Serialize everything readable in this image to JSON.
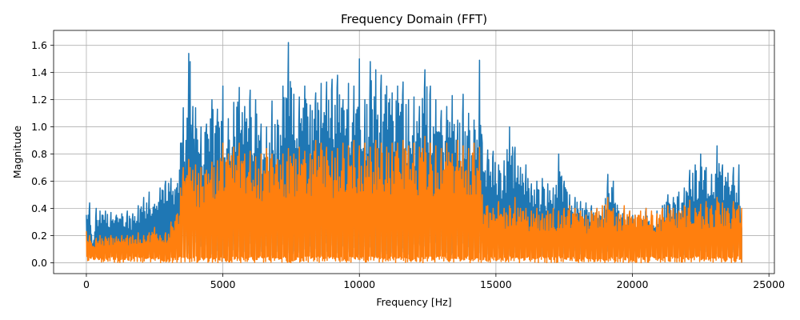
{
  "chart_data": {
    "type": "line",
    "title": "Frequency Domain (FFT)",
    "xlabel": "Frequency [Hz]",
    "ylabel": "Magnitude",
    "xlim": [
      -1200,
      25200
    ],
    "ylim": [
      -0.08,
      1.71
    ],
    "xticks": [
      0,
      5000,
      10000,
      15000,
      20000,
      25000
    ],
    "xtick_labels": [
      "0",
      "5000",
      "10000",
      "15000",
      "20000",
      "25000"
    ],
    "yticks": [
      0.0,
      0.2,
      0.4,
      0.6,
      0.8,
      1.0,
      1.2,
      1.4,
      1.6
    ],
    "ytick_labels": [
      "0.0",
      "0.2",
      "0.4",
      "0.6",
      "0.8",
      "1.0",
      "1.2",
      "1.4",
      "1.6"
    ],
    "grid": true,
    "colors": {
      "series1": "#1f77b4",
      "series2": "#ff7f0e"
    },
    "series": [
      {
        "name": "",
        "color": "#1f77b4",
        "x": [
          0,
          120,
          240,
          360,
          500,
          700,
          900,
          1100,
          1300,
          1500,
          1700,
          1900,
          2100,
          2300,
          2500,
          2700,
          2900,
          3100,
          3300,
          3450,
          3550,
          3650,
          3750,
          3800,
          3900,
          4000,
          4200,
          4400,
          4600,
          4800,
          5000,
          5200,
          5400,
          5600,
          5800,
          6000,
          6200,
          6400,
          6600,
          6800,
          7000,
          7200,
          7400,
          7600,
          7800,
          8000,
          8200,
          8400,
          8600,
          8800,
          9000,
          9200,
          9400,
          9600,
          9800,
          10000,
          10200,
          10400,
          10600,
          10800,
          11000,
          11200,
          11400,
          11600,
          11800,
          12000,
          12200,
          12400,
          12600,
          12800,
          13000,
          13200,
          13400,
          13600,
          13800,
          14000,
          14200,
          14400,
          14500,
          14700,
          14900,
          15100,
          15300,
          15500,
          15700,
          15900,
          16100,
          16300,
          16500,
          16700,
          16900,
          17100,
          17300,
          17500,
          17700,
          17900,
          18100,
          18300,
          18500,
          18700,
          18900,
          19100,
          19300,
          19500,
          19700,
          19900,
          20100,
          20300,
          20500,
          20700,
          20900,
          21100,
          21300,
          21500,
          21700,
          21900,
          22100,
          22300,
          22500,
          22700,
          22900,
          23100,
          23300,
          23500,
          23700,
          23900,
          24000
        ],
        "y": [
          0.35,
          0.44,
          0.1,
          0.4,
          0.38,
          0.38,
          0.37,
          0.35,
          0.36,
          0.38,
          0.36,
          0.42,
          0.48,
          0.52,
          0.43,
          0.55,
          0.6,
          0.62,
          0.55,
          0.88,
          1.14,
          0.9,
          1.54,
          1.48,
          1.15,
          1.14,
          1.0,
          1.02,
          1.2,
          1.13,
          1.3,
          1.06,
          1.18,
          1.29,
          1.15,
          1.27,
          1.2,
          1.02,
          1.0,
          1.19,
          1.05,
          1.3,
          1.62,
          1.24,
          1.22,
          1.3,
          1.16,
          1.25,
          1.32,
          1.33,
          1.35,
          1.38,
          1.2,
          1.32,
          1.3,
          1.5,
          1.2,
          1.48,
          1.42,
          1.38,
          1.3,
          1.25,
          1.3,
          1.33,
          1.2,
          1.22,
          1.15,
          1.42,
          1.3,
          1.2,
          1.12,
          1.15,
          1.23,
          1.05,
          1.24,
          1.1,
          1.05,
          1.49,
          0.88,
          0.83,
          0.82,
          0.72,
          0.75,
          1.0,
          0.85,
          0.7,
          0.72,
          0.58,
          0.6,
          0.62,
          0.58,
          0.55,
          0.8,
          0.6,
          0.5,
          0.48,
          0.45,
          0.44,
          0.42,
          0.4,
          0.37,
          0.65,
          0.6,
          0.38,
          0.4,
          0.38,
          0.35,
          0.3,
          0.4,
          0.3,
          0.38,
          0.42,
          0.5,
          0.48,
          0.52,
          0.55,
          0.68,
          0.72,
          0.8,
          0.7,
          0.65,
          0.86,
          0.72,
          0.66,
          0.7,
          0.72,
          0.25
        ]
      },
      {
        "name": "",
        "color": "#ff7f0e",
        "x": [
          0,
          120,
          240,
          360,
          500,
          700,
          900,
          1100,
          1300,
          1500,
          1700,
          1900,
          2100,
          2300,
          2500,
          2700,
          2900,
          3100,
          3300,
          3450,
          3550,
          3650,
          3750,
          3800,
          3900,
          4000,
          4200,
          4400,
          4600,
          4800,
          5000,
          5200,
          5400,
          5600,
          5800,
          6000,
          6200,
          6400,
          6600,
          6800,
          7000,
          7200,
          7400,
          7600,
          7800,
          8000,
          8200,
          8400,
          8600,
          8800,
          9000,
          9200,
          9400,
          9600,
          9800,
          10000,
          10200,
          10400,
          10600,
          10800,
          11000,
          11200,
          11400,
          11600,
          11800,
          12000,
          12200,
          12400,
          12600,
          12800,
          13000,
          13200,
          13400,
          13600,
          13800,
          14000,
          14200,
          14400,
          14500,
          14700,
          14900,
          15100,
          15300,
          15500,
          15700,
          15900,
          16100,
          16300,
          16500,
          16700,
          16900,
          17100,
          17300,
          17500,
          17700,
          17900,
          18100,
          18300,
          18500,
          18700,
          18900,
          19100,
          19300,
          19500,
          19700,
          19900,
          20100,
          20300,
          20500,
          20700,
          20900,
          21100,
          21300,
          21500,
          21700,
          21900,
          22100,
          22300,
          22500,
          22700,
          22900,
          23100,
          23300,
          23500,
          23700,
          23900,
          24000
        ],
        "y": [
          0.23,
          0.2,
          0.12,
          0.18,
          0.2,
          0.19,
          0.2,
          0.19,
          0.2,
          0.2,
          0.2,
          0.22,
          0.2,
          0.22,
          0.26,
          0.2,
          0.22,
          0.3,
          0.35,
          0.55,
          0.7,
          0.62,
          0.76,
          0.7,
          0.68,
          0.72,
          0.7,
          0.68,
          0.74,
          0.75,
          0.88,
          0.8,
          0.85,
          0.88,
          0.8,
          0.82,
          0.78,
          0.8,
          0.84,
          0.8,
          0.76,
          0.8,
          0.84,
          0.8,
          0.85,
          0.82,
          0.8,
          0.9,
          0.88,
          0.85,
          0.82,
          0.84,
          0.88,
          0.86,
          0.9,
          0.86,
          0.88,
          0.85,
          0.9,
          0.88,
          0.85,
          0.88,
          0.88,
          0.9,
          0.86,
          0.88,
          0.85,
          0.93,
          0.88,
          0.86,
          0.84,
          0.88,
          0.8,
          0.9,
          0.86,
          0.84,
          0.88,
          0.85,
          0.5,
          0.42,
          0.4,
          0.45,
          0.4,
          0.42,
          0.48,
          0.4,
          0.4,
          0.38,
          0.4,
          0.36,
          0.38,
          0.4,
          0.38,
          0.4,
          0.42,
          0.4,
          0.38,
          0.35,
          0.38,
          0.4,
          0.42,
          0.48,
          0.4,
          0.36,
          0.42,
          0.38,
          0.35,
          0.38,
          0.4,
          0.38,
          0.36,
          0.4,
          0.42,
          0.4,
          0.38,
          0.42,
          0.46,
          0.4,
          0.43,
          0.45,
          0.42,
          0.48,
          0.44,
          0.4,
          0.45,
          0.42,
          0.4
        ]
      }
    ]
  }
}
